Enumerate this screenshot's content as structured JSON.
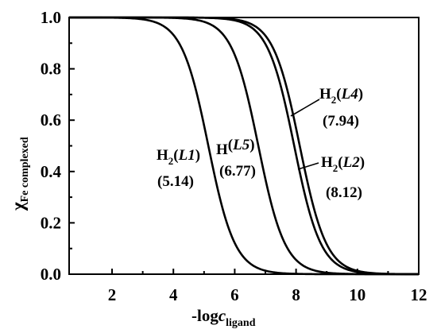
{
  "chart_data": {
    "type": "line",
    "title": "",
    "xlim": [
      0.6,
      12
    ],
    "ylim": [
      0.0,
      1.0
    ],
    "x_ticks": [
      "2",
      "4",
      "6",
      "8",
      "10",
      "12"
    ],
    "y_ticks": [
      "0.0",
      "0.2",
      "0.4",
      "0.6",
      "0.8",
      "1.0"
    ],
    "xlabel": {
      "prefix": "-log",
      "var": "c",
      "sub": "ligand"
    },
    "ylabel": {
      "symbol": "χ",
      "sub": "Fe complexed"
    },
    "grid": false,
    "series": [
      {
        "name": "H2(L1)",
        "midpoint": 5.14,
        "steepness": 2.3
      },
      {
        "name": "H(L5)",
        "midpoint": 6.77,
        "steepness": 2.3
      },
      {
        "name": "H2(L4)",
        "midpoint": 7.94,
        "steepness": 2.3
      },
      {
        "name": "H2(L2)",
        "midpoint": 8.12,
        "steepness": 2.3
      }
    ],
    "annotations": [
      {
        "prefix": "H",
        "sub": "2",
        "ligand": "L1",
        "value": "(5.14)"
      },
      {
        "prefix": "H",
        "sub": "",
        "ligand": "L5",
        "value": "(6.77)"
      },
      {
        "prefix": "H",
        "sub": "2",
        "ligand": "L4",
        "value": "(7.94)"
      },
      {
        "prefix": "H",
        "sub": "2",
        "ligand": "L2",
        "value": "(8.12)"
      }
    ],
    "colors": {
      "line": "#000000",
      "axis": "#000000"
    }
  }
}
